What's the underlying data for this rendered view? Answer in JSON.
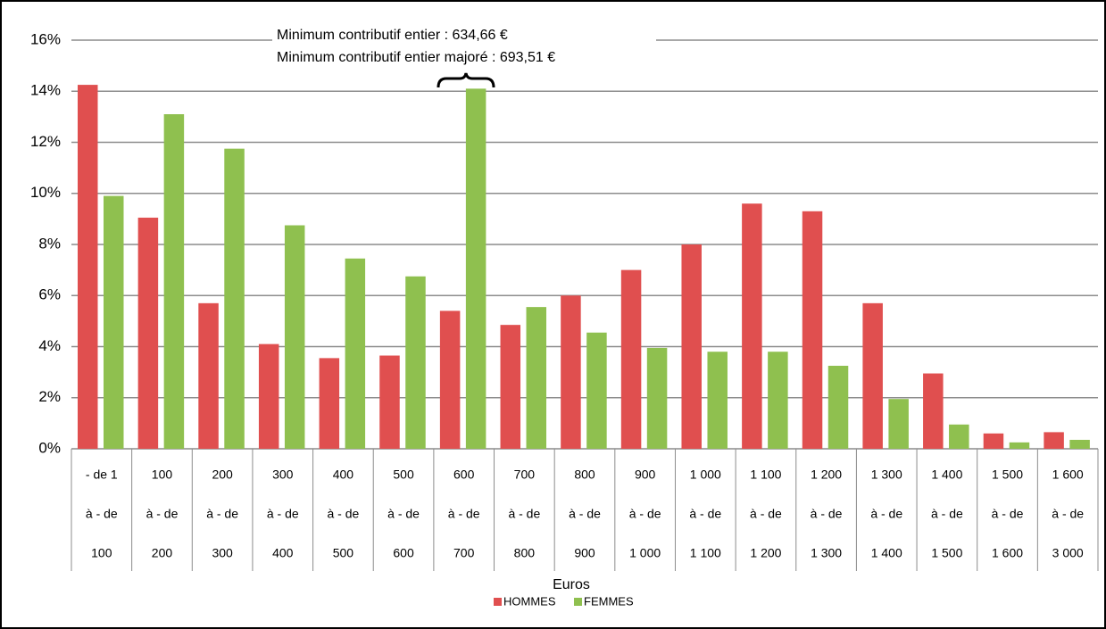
{
  "chart_data": {
    "type": "bar",
    "categories": [
      [
        "- de 1",
        "à - de",
        "100"
      ],
      [
        "100",
        "à - de",
        "200"
      ],
      [
        "200",
        "à - de",
        "300"
      ],
      [
        "300",
        "à - de",
        "400"
      ],
      [
        "400",
        "à - de",
        "500"
      ],
      [
        "500",
        "à - de",
        "600"
      ],
      [
        "600",
        "à - de",
        "700"
      ],
      [
        "700",
        "à - de",
        "800"
      ],
      [
        "800",
        "à - de",
        "900"
      ],
      [
        "900",
        "à - de",
        "1 000"
      ],
      [
        "1 000",
        "à - de",
        "1 100"
      ],
      [
        "1 100",
        "à - de",
        "1 200"
      ],
      [
        "1 200",
        "à - de",
        "1 300"
      ],
      [
        "1 300",
        "à - de",
        "1 400"
      ],
      [
        "1 400",
        "à - de",
        "1 500"
      ],
      [
        "1 500",
        "à - de",
        "1 600"
      ],
      [
        "1 600",
        "à - de",
        "3 000"
      ]
    ],
    "series": [
      {
        "name": "HOMMES",
        "color": "#e04f4f",
        "values": [
          14.25,
          9.05,
          5.7,
          4.1,
          3.55,
          3.65,
          5.4,
          4.85,
          6.0,
          7.0,
          8.0,
          9.6,
          9.3,
          5.7,
          2.95,
          0.6,
          0.65
        ]
      },
      {
        "name": "FEMMES",
        "color": "#8fc04f",
        "values": [
          9.9,
          13.1,
          11.75,
          8.75,
          7.45,
          6.75,
          14.1,
          5.55,
          4.55,
          3.95,
          3.8,
          3.8,
          3.25,
          1.95,
          0.95,
          0.25,
          0.35
        ]
      }
    ],
    "xlabel": "Euros",
    "annotations": [
      "Minimum contributif entier : 634,66 €",
      "Minimum contributif entier majoré : 693,51 €"
    ],
    "ylim": [
      0,
      16
    ],
    "yticks": [
      {
        "value": 0,
        "label": "0%"
      },
      {
        "value": 2,
        "label": "2%"
      },
      {
        "value": 4,
        "label": "4%"
      },
      {
        "value": 6,
        "label": "6%"
      },
      {
        "value": 8,
        "label": "8%"
      },
      {
        "value": 10,
        "label": "10%"
      },
      {
        "value": 12,
        "label": "12%"
      },
      {
        "value": 14,
        "label": "14%"
      },
      {
        "value": 16,
        "label": "16%"
      }
    ],
    "grid": true,
    "legend": "bottom"
  }
}
